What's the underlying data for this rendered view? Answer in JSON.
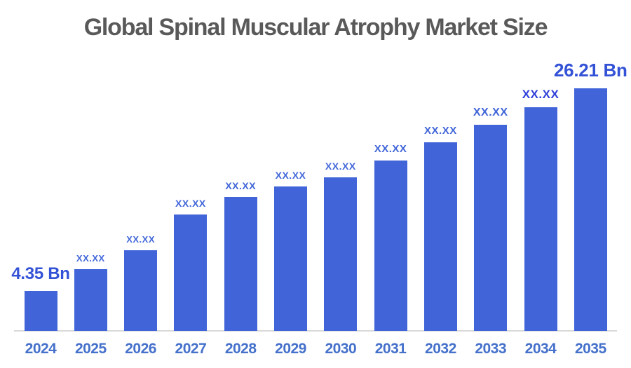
{
  "title": "Global Spinal Muscular Atrophy Market Size",
  "colors": {
    "bar_fill": "#4165d9",
    "title_text": "#595959",
    "year_label_text": "#4571cb",
    "value_label_text": "#4166d8",
    "value_label_emphasis_text": "#2f3fd9",
    "endpoint_label_text": "#3352d6",
    "axis_line": "#d9d9d9",
    "background": "#ffffff"
  },
  "chart_data": {
    "type": "bar",
    "title": "Global Spinal Muscular Atrophy Market Size",
    "categories": [
      "2024",
      "2025",
      "2026",
      "2027",
      "2028",
      "2029",
      "2030",
      "2031",
      "2032",
      "2033",
      "2034",
      "2035"
    ],
    "value_labels": [
      "4.35 Bn",
      "XX.XX",
      "XX.XX",
      "XX.XX",
      "XX.XX",
      "XX.XX",
      "XX.XX",
      "XX.XX",
      "XX.XX",
      "XX.XX",
      "XX.XX",
      "26.21 Bn"
    ],
    "known_values": {
      "2024": 4.35,
      "2035": 26.21
    },
    "estimated_values": [
      4.35,
      6.7,
      8.7,
      12.6,
      14.5,
      15.6,
      16.6,
      18.4,
      20.4,
      22.3,
      24.2,
      26.21
    ],
    "unit": "Bn",
    "xlabel": "",
    "ylabel": "",
    "ylim": [
      0,
      28
    ],
    "grid": false,
    "legend": false,
    "x_axis_line": true,
    "y_axis_line": false
  }
}
